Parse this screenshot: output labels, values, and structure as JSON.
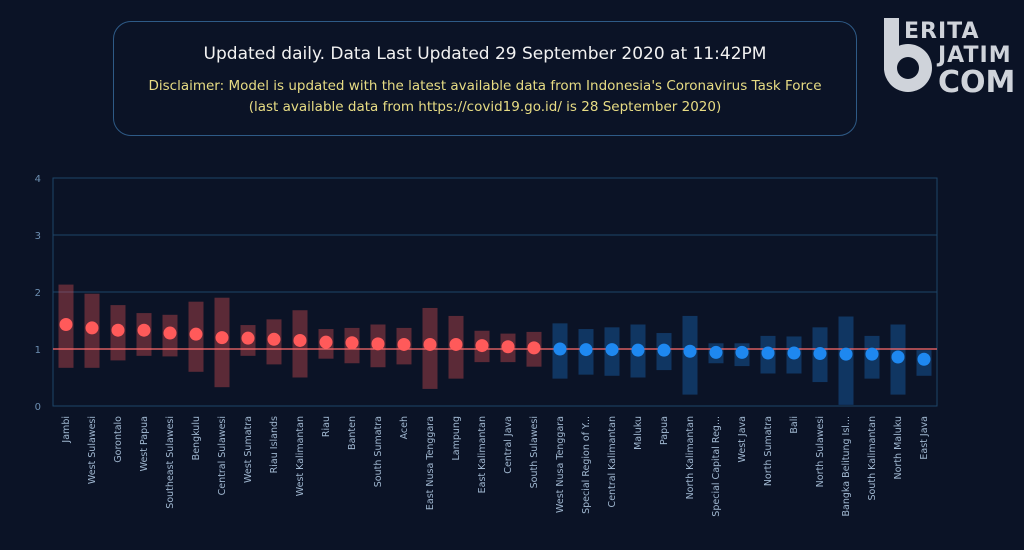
{
  "header": {
    "updated_text": "Updated daily. Data Last Updated 29 September 2020 at 11:42PM",
    "disclaimer_line1": "Disclaimer: Model is updated with the latest available data from Indonesia's Coronavirus Task Force",
    "disclaimer_line2": "(last available data from https://covid19.go.id/ is 28 September 2020)"
  },
  "logo": {
    "text_line1": "ERITA",
    "text_line2": "JATIM",
    "text_line3": "COM"
  },
  "colors": {
    "background": "#0b1326",
    "above": "#ff5a5a",
    "below": "#1e88f0",
    "reference_line": "#ff6b6b",
    "grid": "#1e4468"
  },
  "chart_data": {
    "type": "scatter",
    "ylim": [
      0,
      4
    ],
    "yticks": [
      "0",
      "1",
      "2",
      "3",
      "4"
    ],
    "reference": 1,
    "categories": [
      "Jambi",
      "West Sulawesi",
      "Gorontalo",
      "West Papua",
      "Southeast Sulawesi",
      "Bengkulu",
      "Central Sulawesi",
      "West Sumatra",
      "Riau Islands",
      "West Kalimantan",
      "Riau",
      "Banten",
      "South Sumatra",
      "Aceh",
      "East Nusa Tenggara",
      "Lampung",
      "East Kalimantan",
      "Central Java",
      "South Sulawesi",
      "West Nusa Tenggara",
      "Special Region of Y...",
      "Central Kalimantan",
      "Maluku",
      "Papua",
      "North Kalimantan",
      "Special Capital Reg...",
      "West Java",
      "North Sumatra",
      "Bali",
      "North Sulawesi",
      "Bangka Belitung Isl...",
      "South Kalimantan",
      "North Maluku",
      "East Java"
    ],
    "values": [
      1.43,
      1.37,
      1.33,
      1.33,
      1.28,
      1.26,
      1.2,
      1.19,
      1.17,
      1.15,
      1.12,
      1.11,
      1.09,
      1.08,
      1.08,
      1.08,
      1.06,
      1.04,
      1.02,
      1.0,
      0.99,
      0.99,
      0.98,
      0.98,
      0.96,
      0.94,
      0.94,
      0.93,
      0.93,
      0.92,
      0.91,
      0.91,
      0.86,
      0.82
    ],
    "lower": [
      0.67,
      0.67,
      0.8,
      0.88,
      0.87,
      0.6,
      0.33,
      0.88,
      0.73,
      0.5,
      0.83,
      0.75,
      0.68,
      0.73,
      0.3,
      0.48,
      0.77,
      0.77,
      0.69,
      0.48,
      0.55,
      0.53,
      0.5,
      0.63,
      0.2,
      0.75,
      0.7,
      0.57,
      0.57,
      0.42,
      0.02,
      0.48,
      0.2,
      0.53
    ],
    "upper": [
      2.13,
      1.97,
      1.77,
      1.63,
      1.6,
      1.83,
      1.9,
      1.42,
      1.52,
      1.68,
      1.35,
      1.37,
      1.43,
      1.37,
      1.72,
      1.58,
      1.32,
      1.27,
      1.3,
      1.45,
      1.35,
      1.38,
      1.43,
      1.28,
      1.58,
      1.1,
      1.1,
      1.23,
      1.22,
      1.38,
      1.57,
      1.23,
      1.43,
      0.98
    ]
  }
}
